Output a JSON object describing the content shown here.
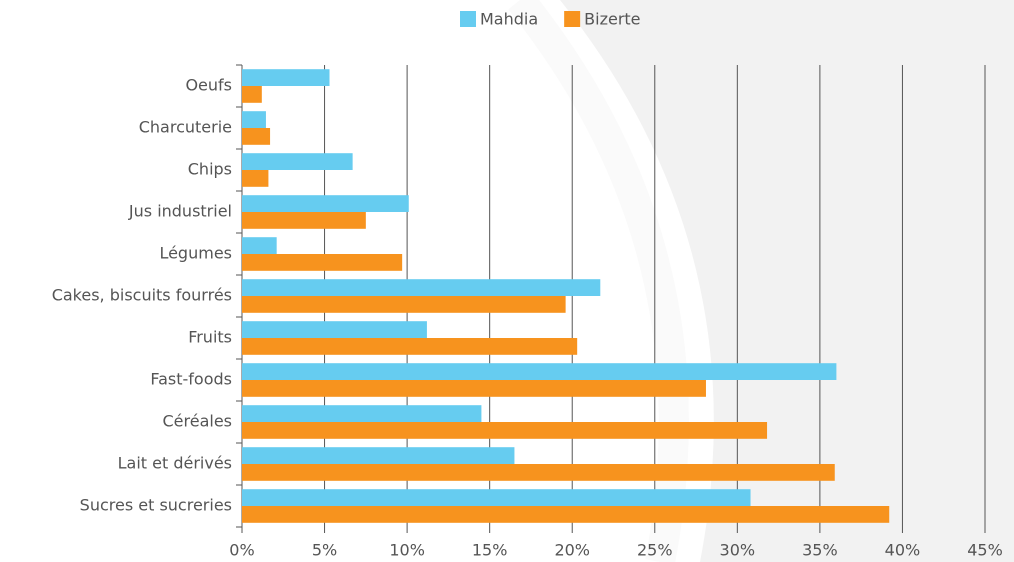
{
  "chart_data": {
    "type": "hbar",
    "categories": [
      "Oeufs",
      "Charcuterie",
      "Chips",
      "Jus industriel",
      "Légumes",
      "Cakes, biscuits fourrés",
      "Fruits",
      "Fast-foods",
      "Céréales",
      "Lait et dérivés",
      "Sucres et sucreries"
    ],
    "series": [
      {
        "name": "Mahdia",
        "color": "#66ccf0",
        "values": [
          5.3,
          1.45,
          6.7,
          10.1,
          2.1,
          21.7,
          11.2,
          36.0,
          14.5,
          16.5,
          30.8
        ]
      },
      {
        "name": "Bizerte",
        "color": "#f7931e",
        "values": [
          1.2,
          1.7,
          1.6,
          7.5,
          9.7,
          19.6,
          20.3,
          28.1,
          31.8,
          35.9,
          39.2
        ]
      }
    ],
    "xlim": [
      0,
      45
    ],
    "xticks": [
      {
        "value": 0,
        "label": "0%"
      },
      {
        "value": 5,
        "label": "5%"
      },
      {
        "value": 10,
        "label": "10%"
      },
      {
        "value": 15,
        "label": "15%"
      },
      {
        "value": 20,
        "label": "20%"
      },
      {
        "value": 25,
        "label": "25%"
      },
      {
        "value": 30,
        "label": "30%"
      },
      {
        "value": 35,
        "label": "35%"
      },
      {
        "value": 40,
        "label": "40%"
      },
      {
        "value": 45,
        "label": "45%"
      }
    ],
    "grid": true,
    "legend": "top"
  }
}
